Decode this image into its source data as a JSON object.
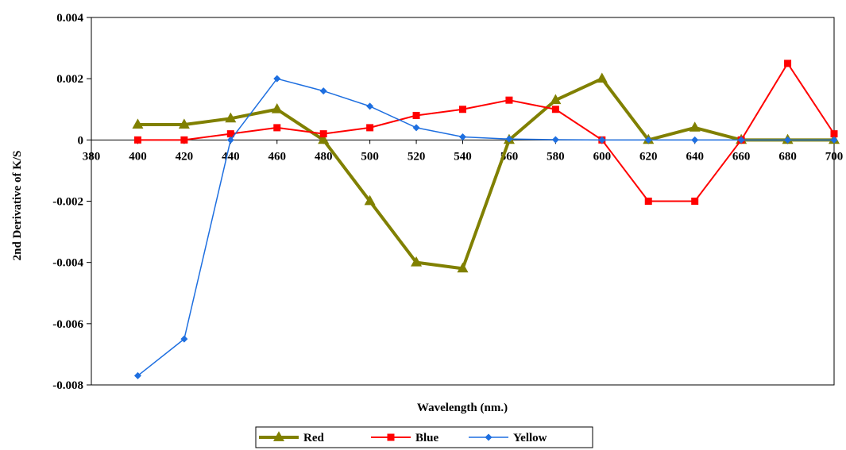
{
  "chart_data": {
    "type": "line",
    "title": "",
    "xlabel": "Wavelength (nm.)",
    "ylabel": "2nd  Derivative of K/S",
    "xlim": [
      380,
      700
    ],
    "ylim": [
      -0.008,
      0.004
    ],
    "x_ticks": [
      "380",
      "400",
      "420",
      "440",
      "460",
      "480",
      "500",
      "520",
      "540",
      "560",
      "580",
      "600",
      "620",
      "640",
      "660",
      "680",
      "700"
    ],
    "y_ticks": [
      "0.004",
      "0.002",
      "0",
      "-0.002",
      "-0.004",
      "-0.006",
      "-0.008"
    ],
    "grid": false,
    "legend_position": "bottom-center",
    "x": [
      400,
      420,
      440,
      460,
      480,
      500,
      520,
      540,
      560,
      580,
      600,
      620,
      640,
      660,
      680,
      700
    ],
    "series": [
      {
        "name": "Red",
        "color": "#808000",
        "marker": "triangle",
        "values": [
          0.0005,
          0.0005,
          0.0007,
          0.001,
          0.0,
          -0.002,
          -0.004,
          -0.0042,
          0.0,
          0.0013,
          0.002,
          0.0,
          0.0004,
          0.0,
          0.0,
          0.0
        ]
      },
      {
        "name": "Blue",
        "color": "#ff0000",
        "marker": "square",
        "values": [
          0.0,
          0.0,
          0.0002,
          0.0004,
          0.0002,
          0.0004,
          0.0008,
          0.001,
          0.0013,
          0.001,
          0.0,
          -0.002,
          -0.002,
          0.0,
          0.0025,
          0.0002
        ]
      },
      {
        "name": "Yellow",
        "color": "#1e6fe0",
        "marker": "diamond",
        "values": [
          -0.0077,
          -0.0065,
          0.0,
          0.002,
          0.0016,
          0.0011,
          0.0004,
          0.0001,
          3e-05,
          1e-05,
          0.0,
          0.0,
          0.0,
          0.0,
          0.0,
          0.0
        ]
      }
    ]
  }
}
